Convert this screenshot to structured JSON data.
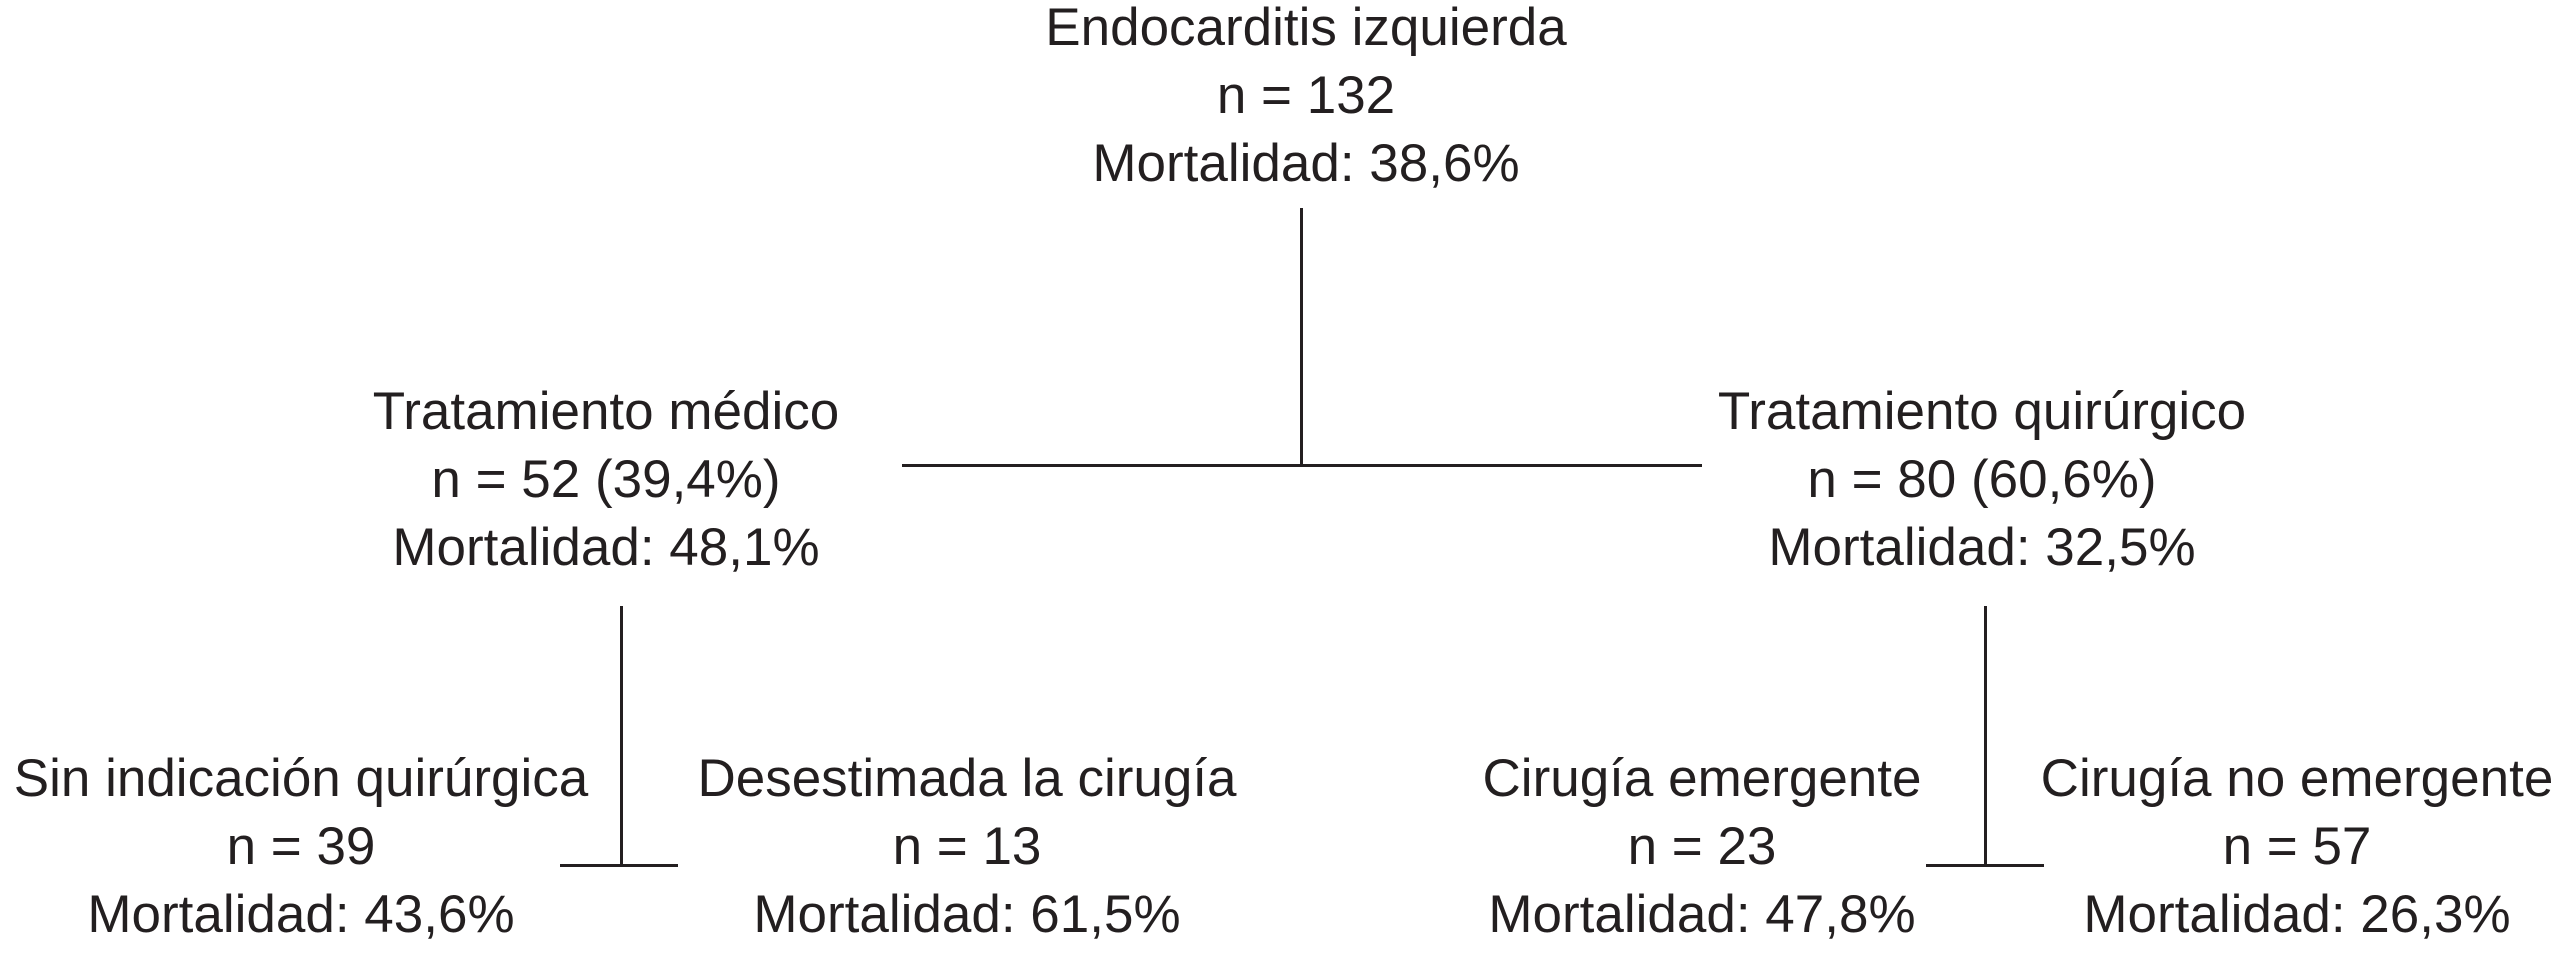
{
  "root": {
    "title": "Endocarditis izquierda",
    "n": "n = 132",
    "mortality": "Mortalidad: 38,6%"
  },
  "medical": {
    "title": "Tratamiento médico",
    "n": "n = 52 (39,4%)",
    "mortality": "Mortalidad: 48,1%"
  },
  "surgical": {
    "title": "Tratamiento quirúrgico",
    "n": "n = 80 (60,6%)",
    "mortality": "Mortalidad: 32,5%"
  },
  "no_indication": {
    "title": "Sin indicación quirúrgica",
    "n": "n = 39",
    "mortality": "Mortalidad: 43,6%"
  },
  "surgery_declined": {
    "title": "Desestimada la cirugía",
    "n": "n = 13",
    "mortality": "Mortalidad: 61,5%"
  },
  "emergent_surgery": {
    "title": "Cirugía emergente",
    "n": "n = 23",
    "mortality": "Mortalidad: 47,8%"
  },
  "non_emergent_surgery": {
    "title": "Cirugía no emergente",
    "n": "n = 57",
    "mortality": "Mortalidad: 26,3%"
  }
}
